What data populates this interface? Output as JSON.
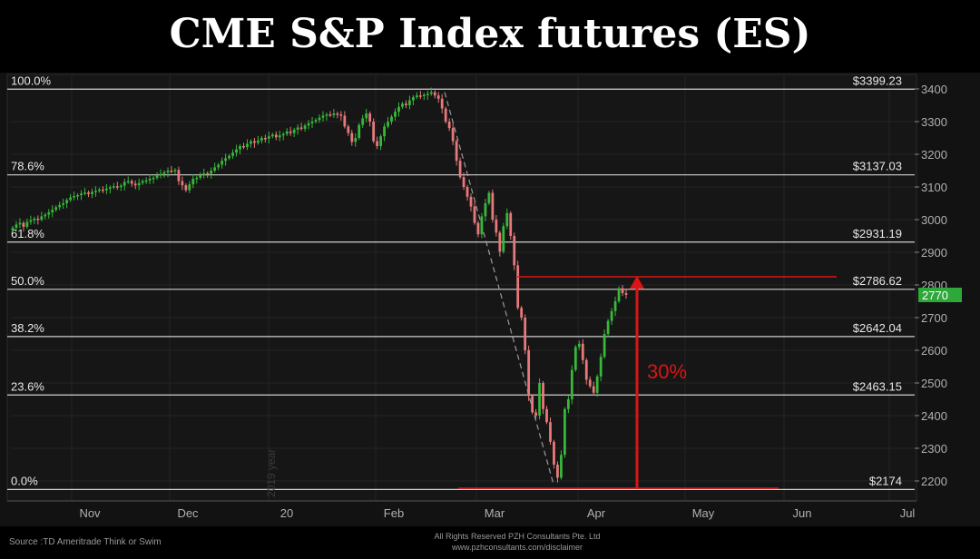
{
  "title": "CME S&P Index futures (ES)",
  "watermark": "2019 year",
  "annotation": "30%",
  "current_price": "2770",
  "footer": {
    "source": "Source :TD Ameritrade Think or Swim",
    "copyright": "All Rights Reserved PZH Consultants Pte. Ltd",
    "url": "www.pzhconsultants.com/disclaimer"
  },
  "colors": {
    "up": "#36b83a",
    "down": "#e8797b",
    "annotation": "#d91515",
    "price_tag": "#2ea83a"
  },
  "chart_data": {
    "type": "candlestick",
    "ylim": [
      2150,
      3420
    ],
    "y_ticks": [
      "3400",
      "3300",
      "3200",
      "3100",
      "3000",
      "2900",
      "2800",
      "2700",
      "2600",
      "2500",
      "2400",
      "2300",
      "2200"
    ],
    "x_ticks": [
      "Nov",
      "Dec",
      "20",
      "Feb",
      "Mar",
      "Apr",
      "May",
      "Jun",
      "Jul"
    ],
    "fib_levels": [
      {
        "pct": "100.0%",
        "price": "$3399.23",
        "value": 3399.23
      },
      {
        "pct": "78.6%",
        "price": "$3137.03",
        "value": 3137.03
      },
      {
        "pct": "61.8%",
        "price": "$2931.19",
        "value": 2931.19
      },
      {
        "pct": "50.0%",
        "price": "$2786.62",
        "value": 2786.62
      },
      {
        "pct": "38.2%",
        "price": "$2642.04",
        "value": 2642.04
      },
      {
        "pct": "23.6%",
        "price": "$2463.15",
        "value": 2463.15
      },
      {
        "pct": "0.0%",
        "price": "$2174",
        "value": 2174
      }
    ],
    "closes": [
      2975,
      2985,
      2990,
      2978,
      2993,
      2998,
      3003,
      3000,
      3010,
      3015,
      3022,
      3030,
      3038,
      3045,
      3050,
      3060,
      3068,
      3072,
      3075,
      3080,
      3083,
      3078,
      3085,
      3088,
      3092,
      3090,
      3095,
      3099,
      3102,
      3100,
      3104,
      3115,
      3118,
      3110,
      3105,
      3112,
      3118,
      3120,
      3125,
      3128,
      3135,
      3140,
      3145,
      3150,
      3148,
      3152,
      3118,
      3105,
      3090,
      3108,
      3125,
      3128,
      3135,
      3142,
      3140,
      3150,
      3160,
      3168,
      3180,
      3188,
      3195,
      3205,
      3215,
      3225,
      3222,
      3232,
      3240,
      3235,
      3242,
      3250,
      3248,
      3255,
      3260,
      3252,
      3258,
      3262,
      3270,
      3265,
      3275,
      3282,
      3278,
      3288,
      3295,
      3300,
      3305,
      3312,
      3318,
      3322,
      3320,
      3325,
      3322,
      3318,
      3285,
      3265,
      3238,
      3250,
      3290,
      3310,
      3325,
      3300,
      3240,
      3225,
      3255,
      3285,
      3300,
      3315,
      3330,
      3345,
      3355,
      3350,
      3365,
      3375,
      3380,
      3378,
      3382,
      3385,
      3390,
      3380,
      3370,
      3340,
      3300,
      3280,
      3240,
      3180,
      3130,
      3100,
      3070,
      3040,
      2990,
      2955,
      3010,
      3050,
      3082,
      3000,
      2960,
      2902,
      2980,
      3020,
      2950,
      2860,
      2730,
      2700,
      2600,
      2460,
      2410,
      2400,
      2500,
      2420,
      2380,
      2320,
      2250,
      2210,
      2280,
      2420,
      2450,
      2540,
      2610,
      2620,
      2570,
      2510,
      2490,
      2470,
      2520,
      2580,
      2650,
      2690,
      2720,
      2750,
      2790,
      2775,
      2770
    ]
  }
}
